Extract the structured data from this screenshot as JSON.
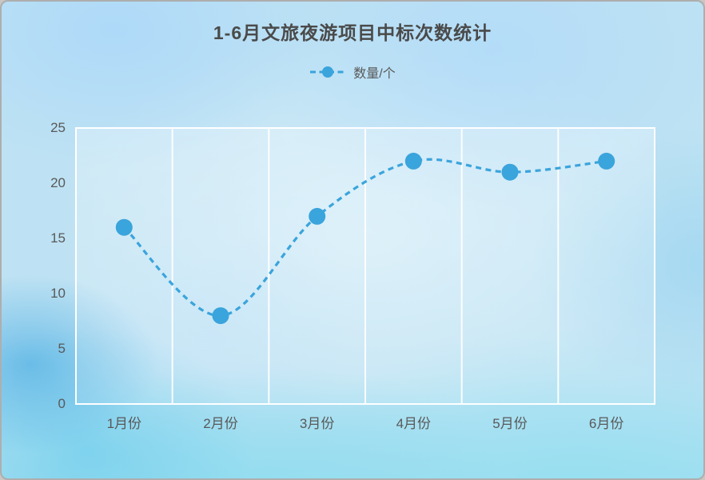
{
  "card": {
    "title": "1-6月文旅夜游项目中标次数统计"
  },
  "legend": {
    "label": "数量/个"
  },
  "colors": {
    "accent": "#3AA4DC",
    "title_text": "#4A4A4A",
    "axis_text": "#595959",
    "grid": "#FFFFFF"
  },
  "chart_data": {
    "type": "line",
    "title": "1-6月文旅夜游项目中标次数统计",
    "categories": [
      "1月份",
      "2月份",
      "3月份",
      "4月份",
      "5月份",
      "6月份"
    ],
    "series": [
      {
        "name": "数量/个",
        "values": [
          16,
          8,
          17,
          22,
          21,
          22
        ]
      }
    ],
    "xlabel": "",
    "ylabel": "",
    "ylim": [
      0,
      25
    ],
    "yticks": [
      0,
      5,
      10,
      15,
      20,
      25
    ],
    "grid": "vertical-only",
    "legend_position": "top",
    "line_style": "dashed-smooth",
    "marker": "circle"
  }
}
